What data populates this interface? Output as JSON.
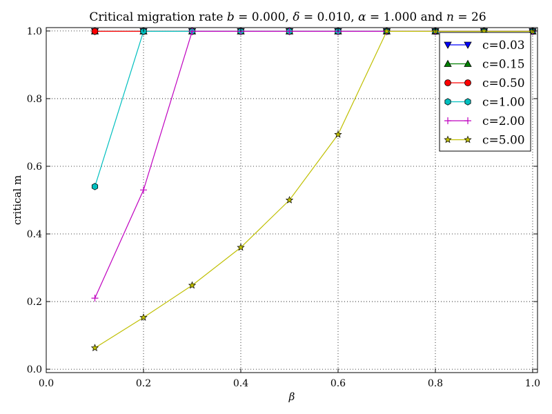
{
  "chart_data": {
    "type": "line",
    "title_parts": {
      "t1": "Critical migration rate ",
      "t2": "b",
      "t3": " = 0.000, ",
      "t4": "δ",
      "t5": " = 0.010, ",
      "t6": "α",
      "t7": " = 1.000 and ",
      "t8": "n",
      "t9": " = 26"
    },
    "xlabel": "β",
    "ylabel": "critical m",
    "xlim": [
      0.0,
      1.01
    ],
    "ylim": [
      -0.01,
      1.01
    ],
    "xticks": [
      "0.0",
      "0.2",
      "0.4",
      "0.6",
      "0.8",
      "1.0"
    ],
    "yticks": [
      "0.0",
      "0.2",
      "0.4",
      "0.6",
      "0.8",
      "1.0"
    ],
    "grid": true,
    "legend_position": "top-right",
    "series": [
      {
        "name": "c=0.03",
        "color": "#0000ff",
        "marker": "triangle-down",
        "x": [
          0.1,
          0.2,
          0.3,
          0.4,
          0.5,
          0.6,
          0.7,
          0.8,
          0.9,
          1.0
        ],
        "y": [
          0.999,
          0.999,
          0.999,
          0.999,
          0.999,
          0.999,
          0.999,
          0.999,
          0.999,
          0.999
        ]
      },
      {
        "name": "c=0.15",
        "color": "#008000",
        "marker": "triangle-up",
        "x": [
          0.1,
          0.2,
          0.3,
          0.4,
          0.5,
          0.6,
          0.7,
          0.8,
          0.9,
          1.0
        ],
        "y": [
          0.999,
          0.999,
          0.999,
          0.999,
          0.999,
          0.999,
          0.999,
          0.999,
          0.999,
          0.999
        ]
      },
      {
        "name": "c=0.50",
        "color": "#ff0000",
        "marker": "circle",
        "x": [
          0.1,
          0.2,
          0.3,
          0.4,
          0.5,
          0.6,
          0.7,
          0.8,
          0.9,
          1.0
        ],
        "y": [
          0.999,
          0.999,
          0.999,
          0.999,
          0.999,
          0.999,
          0.999,
          0.999,
          0.999,
          0.999
        ]
      },
      {
        "name": "c=1.00",
        "color": "#00bfbf",
        "marker": "hexagon",
        "x": [
          0.1,
          0.2,
          0.3,
          0.4,
          0.5,
          0.6,
          0.7,
          0.8,
          0.9,
          1.0
        ],
        "y": [
          0.54,
          0.999,
          0.999,
          0.999,
          0.999,
          0.999,
          0.999,
          0.999,
          0.999,
          0.999
        ]
      },
      {
        "name": "c=2.00",
        "color": "#bf00bf",
        "marker": "plus",
        "x": [
          0.1,
          0.2,
          0.3,
          0.4,
          0.5,
          0.6,
          0.7,
          0.8,
          0.9,
          1.0
        ],
        "y": [
          0.21,
          0.53,
          0.999,
          0.999,
          0.999,
          0.999,
          0.999,
          0.999,
          0.999,
          0.999
        ]
      },
      {
        "name": "c=5.00",
        "color": "#bfbf00",
        "marker": "star",
        "x": [
          0.1,
          0.2,
          0.3,
          0.4,
          0.5,
          0.6,
          0.7,
          0.8,
          0.9,
          1.0
        ],
        "y": [
          0.063,
          0.153,
          0.248,
          0.36,
          0.5,
          0.694,
          0.999,
          0.999,
          0.999,
          0.999
        ]
      }
    ]
  }
}
